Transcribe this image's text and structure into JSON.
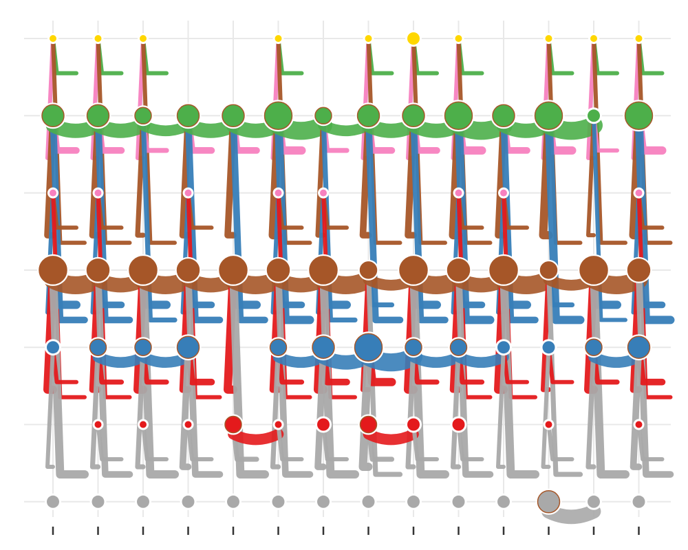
{
  "chart_data": {
    "type": "scatter",
    "title": "",
    "xlabel": "",
    "ylabel": "",
    "grid": true,
    "legend": "none",
    "x": [
      1,
      2,
      3,
      4,
      5,
      6,
      7,
      8,
      9,
      10,
      11,
      12,
      13,
      14
    ],
    "rows": [
      1,
      2,
      3,
      4,
      5,
      6,
      7
    ],
    "colors": {
      "gold": "#ffd700",
      "brown": "#a65628",
      "green": "#4daf4a",
      "blue": "#377eb8",
      "red": "#e41a1c",
      "grey": "#a9a9a9",
      "pink": "#f781bf",
      "grid": "#e8e8e8",
      "tick": "#333333"
    },
    "series": [
      {
        "row": 7,
        "color": "gold",
        "nodes": [
          {
            "x": 1,
            "size": 1
          },
          {
            "x": 2,
            "size": 1
          },
          {
            "x": 3,
            "size": 1
          },
          {
            "x": 6,
            "size": 1
          },
          {
            "x": 8,
            "size": 1
          },
          {
            "x": 9,
            "size": 2
          },
          {
            "x": 10,
            "size": 1
          },
          {
            "x": 12,
            "size": 1
          },
          {
            "x": 13,
            "size": 1
          },
          {
            "x": 14,
            "size": 1
          }
        ]
      },
      {
        "row": 6,
        "color": "green",
        "nodes": [
          {
            "x": 1,
            "size": 4
          },
          {
            "x": 2,
            "size": 4
          },
          {
            "x": 3,
            "size": 3
          },
          {
            "x": 4,
            "size": 4
          },
          {
            "x": 5,
            "size": 4
          },
          {
            "x": 6,
            "size": 5
          },
          {
            "x": 7,
            "size": 3
          },
          {
            "x": 8,
            "size": 4
          },
          {
            "x": 9,
            "size": 4
          },
          {
            "x": 10,
            "size": 5
          },
          {
            "x": 11,
            "size": 4
          },
          {
            "x": 12,
            "size": 5
          },
          {
            "x": 13,
            "size": 2
          },
          {
            "x": 14,
            "size": 5
          }
        ]
      },
      {
        "row": 5,
        "color": "pink",
        "nodes": [
          {
            "x": 1,
            "size": 1
          },
          {
            "x": 2,
            "size": 1
          },
          {
            "x": 4,
            "size": 1
          },
          {
            "x": 6,
            "size": 1
          },
          {
            "x": 7,
            "size": 1
          },
          {
            "x": 10,
            "size": 1
          },
          {
            "x": 11,
            "size": 1
          },
          {
            "x": 14,
            "size": 1
          }
        ]
      },
      {
        "row": 4,
        "color": "brown",
        "nodes": [
          {
            "x": 1,
            "size": 5
          },
          {
            "x": 2,
            "size": 4
          },
          {
            "x": 3,
            "size": 5
          },
          {
            "x": 4,
            "size": 4
          },
          {
            "x": 5,
            "size": 5
          },
          {
            "x": 6,
            "size": 4
          },
          {
            "x": 7,
            "size": 5
          },
          {
            "x": 8,
            "size": 3
          },
          {
            "x": 9,
            "size": 5
          },
          {
            "x": 10,
            "size": 4
          },
          {
            "x": 11,
            "size": 5
          },
          {
            "x": 12,
            "size": 3
          },
          {
            "x": 13,
            "size": 5
          },
          {
            "x": 14,
            "size": 4
          }
        ]
      },
      {
        "row": 3,
        "color": "blue",
        "nodes": [
          {
            "x": 1,
            "size": 2
          },
          {
            "x": 2,
            "size": 3
          },
          {
            "x": 3,
            "size": 3
          },
          {
            "x": 4,
            "size": 4
          },
          {
            "x": 6,
            "size": 3
          },
          {
            "x": 7,
            "size": 4
          },
          {
            "x": 8,
            "size": 5
          },
          {
            "x": 9,
            "size": 3
          },
          {
            "x": 10,
            "size": 3
          },
          {
            "x": 11,
            "size": 2
          },
          {
            "x": 12,
            "size": 2
          },
          {
            "x": 13,
            "size": 3
          },
          {
            "x": 14,
            "size": 4
          }
        ]
      },
      {
        "row": 2,
        "color": "red",
        "nodes": [
          {
            "x": 2,
            "size": 1
          },
          {
            "x": 3,
            "size": 1
          },
          {
            "x": 4,
            "size": 1
          },
          {
            "x": 5,
            "size": 3
          },
          {
            "x": 6,
            "size": 1
          },
          {
            "x": 7,
            "size": 2
          },
          {
            "x": 8,
            "size": 3
          },
          {
            "x": 9,
            "size": 2
          },
          {
            "x": 10,
            "size": 2
          },
          {
            "x": 12,
            "size": 1
          },
          {
            "x": 14,
            "size": 1
          }
        ]
      },
      {
        "row": 1,
        "color": "grey",
        "nodes": [
          {
            "x": 1,
            "size": 2
          },
          {
            "x": 2,
            "size": 2
          },
          {
            "x": 3,
            "size": 2
          },
          {
            "x": 4,
            "size": 2
          },
          {
            "x": 5,
            "size": 2
          },
          {
            "x": 6,
            "size": 2
          },
          {
            "x": 7,
            "size": 2
          },
          {
            "x": 8,
            "size": 2
          },
          {
            "x": 9,
            "size": 2
          },
          {
            "x": 10,
            "size": 2
          },
          {
            "x": 11,
            "size": 2
          },
          {
            "x": 12,
            "size": 4
          },
          {
            "x": 13,
            "size": 2
          },
          {
            "x": 14,
            "size": 2
          }
        ]
      }
    ],
    "annotations": []
  }
}
